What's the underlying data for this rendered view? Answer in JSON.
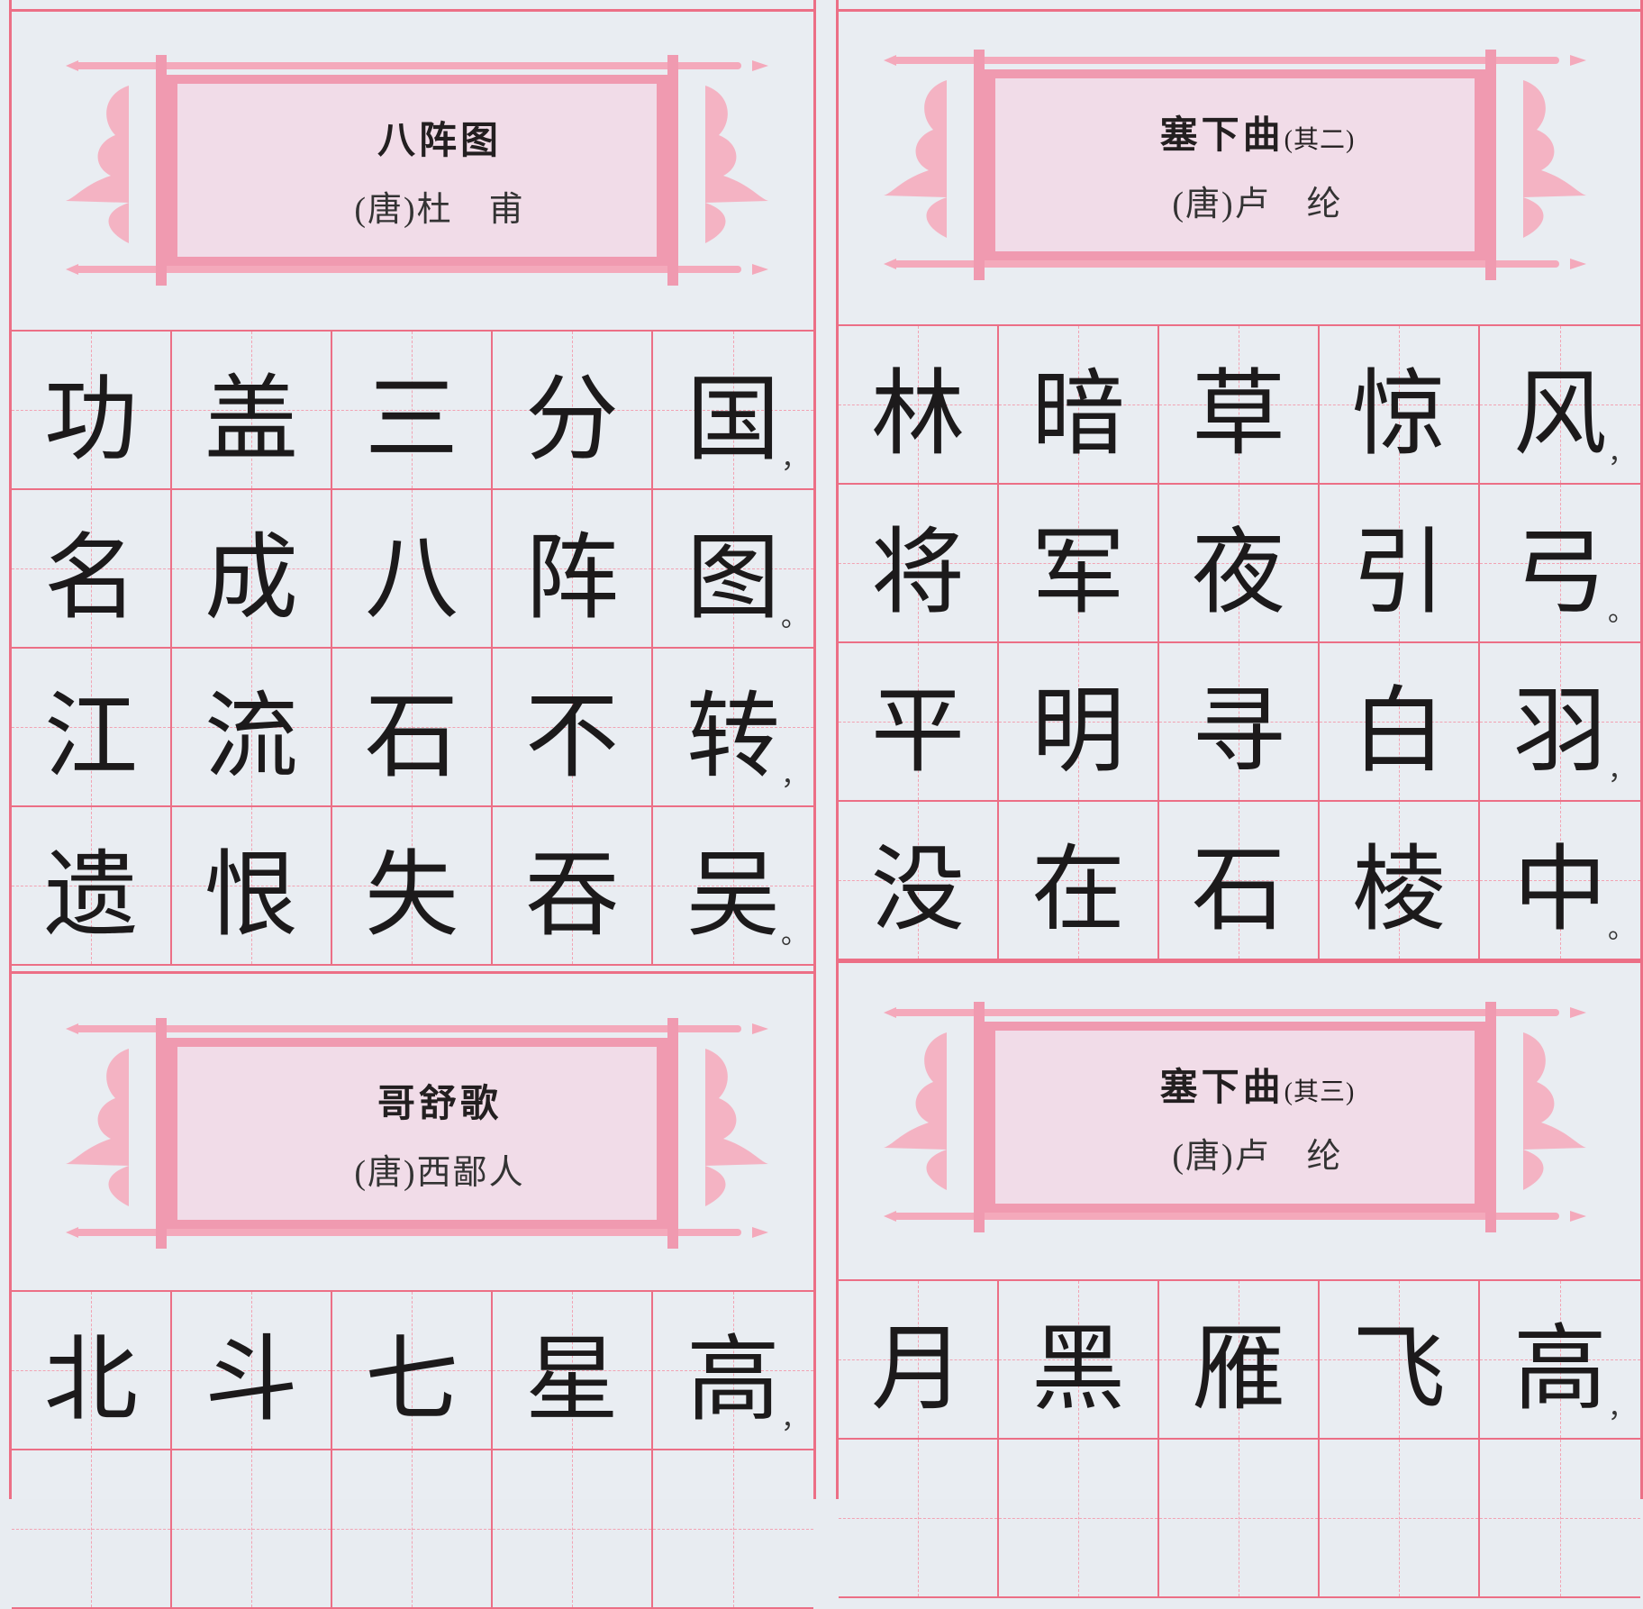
{
  "colors": {
    "grid": "#ec6f86",
    "scroll": "#f4b3c3",
    "scroll_inner": "#f2dde8",
    "paper": "#e9edf2",
    "ink": "#1c1a1b"
  },
  "poems": [
    {
      "title": "八阵图",
      "subtitle": "",
      "author": "(唐)杜　甫",
      "lines": [
        {
          "chars": [
            "功",
            "盖",
            "三",
            "分",
            "国"
          ],
          "punct": "，"
        },
        {
          "chars": [
            "名",
            "成",
            "八",
            "阵",
            "图"
          ],
          "punct": "。"
        },
        {
          "chars": [
            "江",
            "流",
            "石",
            "不",
            "转"
          ],
          "punct": "，"
        },
        {
          "chars": [
            "遗",
            "恨",
            "失",
            "吞",
            "吴"
          ],
          "punct": "。"
        }
      ]
    },
    {
      "title": "塞下曲",
      "subtitle": "(其二)",
      "author": "(唐)卢　纶",
      "lines": [
        {
          "chars": [
            "林",
            "暗",
            "草",
            "惊",
            "风"
          ],
          "punct": "，"
        },
        {
          "chars": [
            "将",
            "军",
            "夜",
            "引",
            "弓"
          ],
          "punct": "。"
        },
        {
          "chars": [
            "平",
            "明",
            "寻",
            "白",
            "羽"
          ],
          "punct": "，"
        },
        {
          "chars": [
            "没",
            "在",
            "石",
            "棱",
            "中"
          ],
          "punct": "。"
        }
      ]
    },
    {
      "title": "哥舒歌",
      "subtitle": "",
      "author": "(唐)西鄙人",
      "lines": [
        {
          "chars": [
            "北",
            "斗",
            "七",
            "星",
            "高"
          ],
          "punct": "，"
        }
      ]
    },
    {
      "title": "塞下曲",
      "subtitle": "(其三)",
      "author": "(唐)卢　纶",
      "lines": [
        {
          "chars": [
            "月",
            "黑",
            "雁",
            "飞",
            "高"
          ],
          "punct": "，"
        }
      ]
    }
  ]
}
